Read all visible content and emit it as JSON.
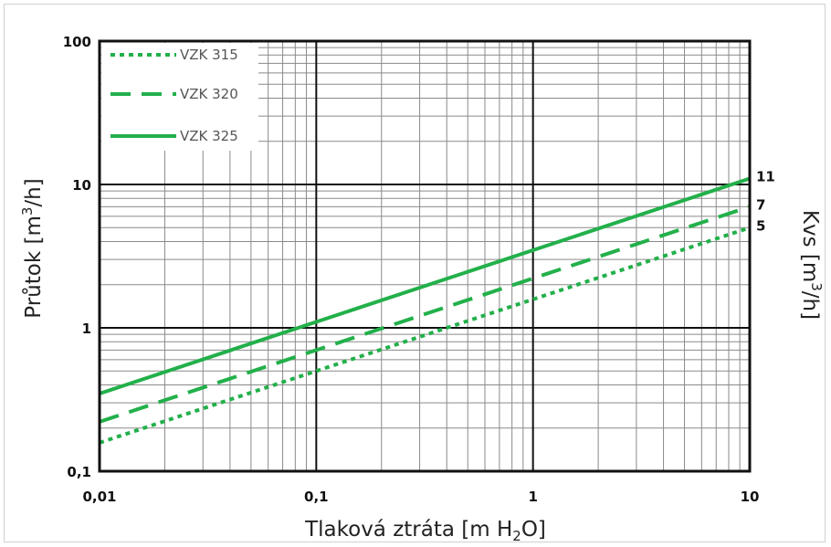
{
  "chart_data": {
    "type": "line",
    "xlabel_parts": [
      "Tlaková ztráta [m H",
      "2",
      "O]"
    ],
    "ylabel_parts": [
      "Průtok [m",
      "3",
      "/h]"
    ],
    "y2label_parts": [
      "Kvs [m",
      "3",
      "/h]"
    ],
    "xscale": "log",
    "yscale": "log",
    "xlim": [
      0.01,
      10
    ],
    "ylim": [
      0.1,
      100
    ],
    "x_ticks": [
      "0,01",
      "0,1",
      "1",
      "10"
    ],
    "y_ticks": [
      "0,1",
      "1",
      "10",
      "100"
    ],
    "grid": true,
    "legend_position": "top-left",
    "series": [
      {
        "name": "VZK 315",
        "style": "dotted",
        "kvs_label": "5",
        "x": [
          0.01,
          10
        ],
        "y": [
          0.158,
          5
        ]
      },
      {
        "name": "VZK 320",
        "style": "dashed",
        "kvs_label": "7",
        "x": [
          0.01,
          10
        ],
        "y": [
          0.221,
          7
        ]
      },
      {
        "name": "VZK 325",
        "style": "solid",
        "kvs_label": "11",
        "x": [
          0.01,
          10
        ],
        "y": [
          0.348,
          11
        ]
      }
    ],
    "colors": {
      "series": "#22b04a",
      "frame": "#111111",
      "grid_minor": "#8a8a8a"
    }
  }
}
